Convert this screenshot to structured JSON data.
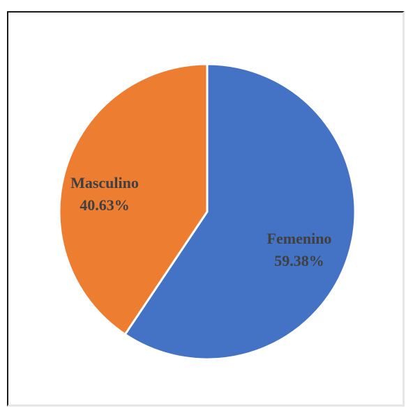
{
  "chart_data": {
    "type": "pie",
    "title": "",
    "slices": [
      {
        "name": "Femenino",
        "value": 59.38,
        "label": "59.38%",
        "color": "#4472C4"
      },
      {
        "name": "Masculino",
        "value": 40.63,
        "label": "40.63%",
        "color": "#ED7D31"
      }
    ],
    "start_angle_deg": 0,
    "direction": "clockwise",
    "legend": "none",
    "slice_border_color": "#ffffff"
  }
}
